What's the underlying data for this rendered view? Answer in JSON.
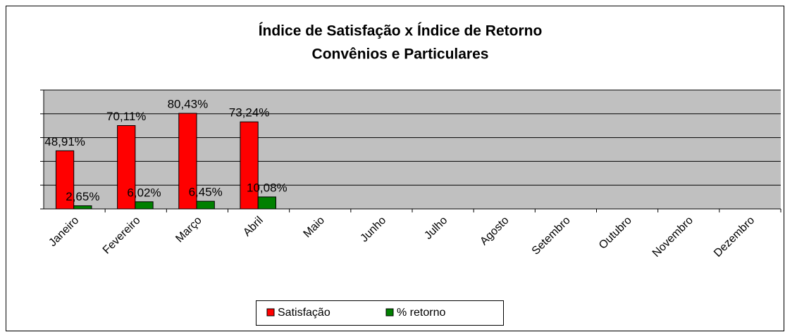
{
  "chart_data": {
    "type": "bar",
    "title": "Índice de Satisfação x Índice de Retorno",
    "subtitle": "Convênios e Particulares",
    "categories": [
      "Janeiro",
      "Fevereiro",
      "Março",
      "Abril",
      "Maio",
      "Junho",
      "Julho",
      "Agosto",
      "Setembro",
      "Outubro",
      "Novembro",
      "Dezembro"
    ],
    "series": [
      {
        "name": "Satisfação",
        "color": "#ff0000",
        "values": [
          48.91,
          70.11,
          80.43,
          73.24,
          null,
          null,
          null,
          null,
          null,
          null,
          null,
          null
        ],
        "value_labels": [
          "48,91%",
          "70,11%",
          "80,43%",
          "73,24%",
          null,
          null,
          null,
          null,
          null,
          null,
          null,
          null
        ]
      },
      {
        "name": "% retorno",
        "color": "#008000",
        "values": [
          2.65,
          6.02,
          6.45,
          10.08,
          null,
          null,
          null,
          null,
          null,
          null,
          null,
          null
        ],
        "value_labels": [
          "2,65%",
          "6,02%",
          "6,45%",
          "10,08%",
          null,
          null,
          null,
          null,
          null,
          null,
          null,
          null
        ]
      }
    ],
    "ylim": [
      0,
      100
    ],
    "yticks": [
      0,
      20,
      40,
      60,
      80,
      100
    ],
    "grid": true,
    "legend": "bottom"
  }
}
